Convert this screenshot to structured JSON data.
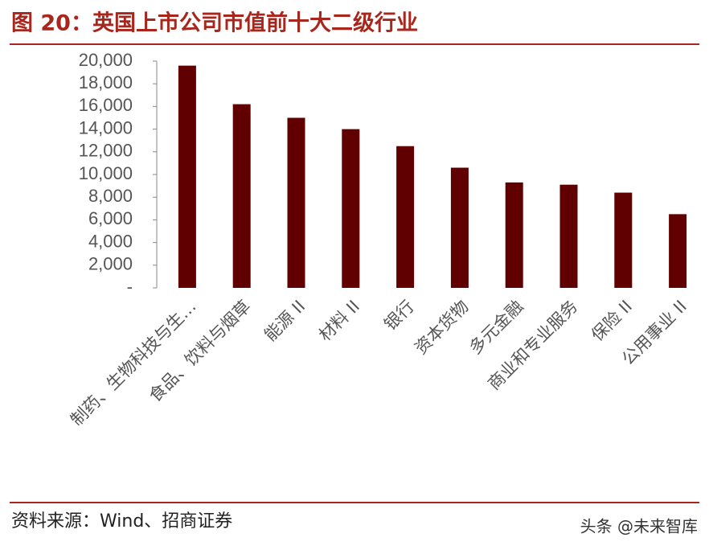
{
  "chart_data": {
    "type": "bar",
    "title": "图 20：英国上市公司市值前十大二级行业",
    "categories": [
      "制药、生物科技与生…",
      "食品、饮料与烟草",
      "能源 II",
      "材料 II",
      "银行",
      "资本货物",
      "多元金融",
      "商业和专业服务",
      "保险 II",
      "公用事业 II"
    ],
    "values": [
      19600,
      16200,
      15000,
      14000,
      12500,
      10600,
      9300,
      9100,
      8400,
      6500
    ],
    "color": "#600000",
    "ylim": [
      0,
      20000
    ],
    "yticks": [
      {
        "value": 0,
        "label": "-"
      },
      {
        "value": 2000,
        "label": "2,000"
      },
      {
        "value": 4000,
        "label": "4,000"
      },
      {
        "value": 6000,
        "label": "6,000"
      },
      {
        "value": 8000,
        "label": "8,000"
      },
      {
        "value": 10000,
        "label": "10,000"
      },
      {
        "value": 12000,
        "label": "12,000"
      },
      {
        "value": 14000,
        "label": "14,000"
      },
      {
        "value": 16000,
        "label": "16,000"
      },
      {
        "value": 18000,
        "label": "18,000"
      },
      {
        "value": 20000,
        "label": "20,000"
      }
    ],
    "grid": false
  },
  "footer": {
    "source": "资料来源：Wind、招商证券",
    "watermark": "头条 @未来智库"
  }
}
